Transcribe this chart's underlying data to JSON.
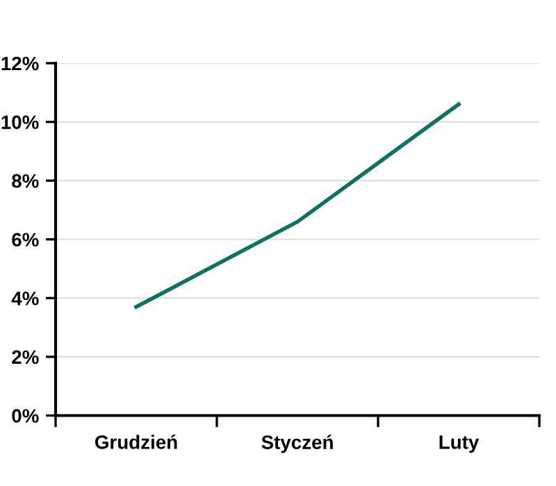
{
  "chart_data": {
    "type": "line",
    "categories": [
      "Grudzień",
      "Styczeń",
      "Luty"
    ],
    "series": [
      {
        "color": "#0a7464",
        "values": [
          3.7,
          6.6,
          10.6
        ]
      }
    ],
    "ylim": [
      0,
      12
    ],
    "yticks": [
      {
        "value": 0,
        "label": "0%"
      },
      {
        "value": 2,
        "label": "2%"
      },
      {
        "value": 4,
        "label": "4%"
      },
      {
        "value": 6,
        "label": "6%"
      },
      {
        "value": 8,
        "label": "8%"
      },
      {
        "value": 10,
        "label": "10%"
      },
      {
        "value": 12,
        "label": "12%"
      }
    ],
    "grid": "y",
    "line_style": "solid"
  }
}
